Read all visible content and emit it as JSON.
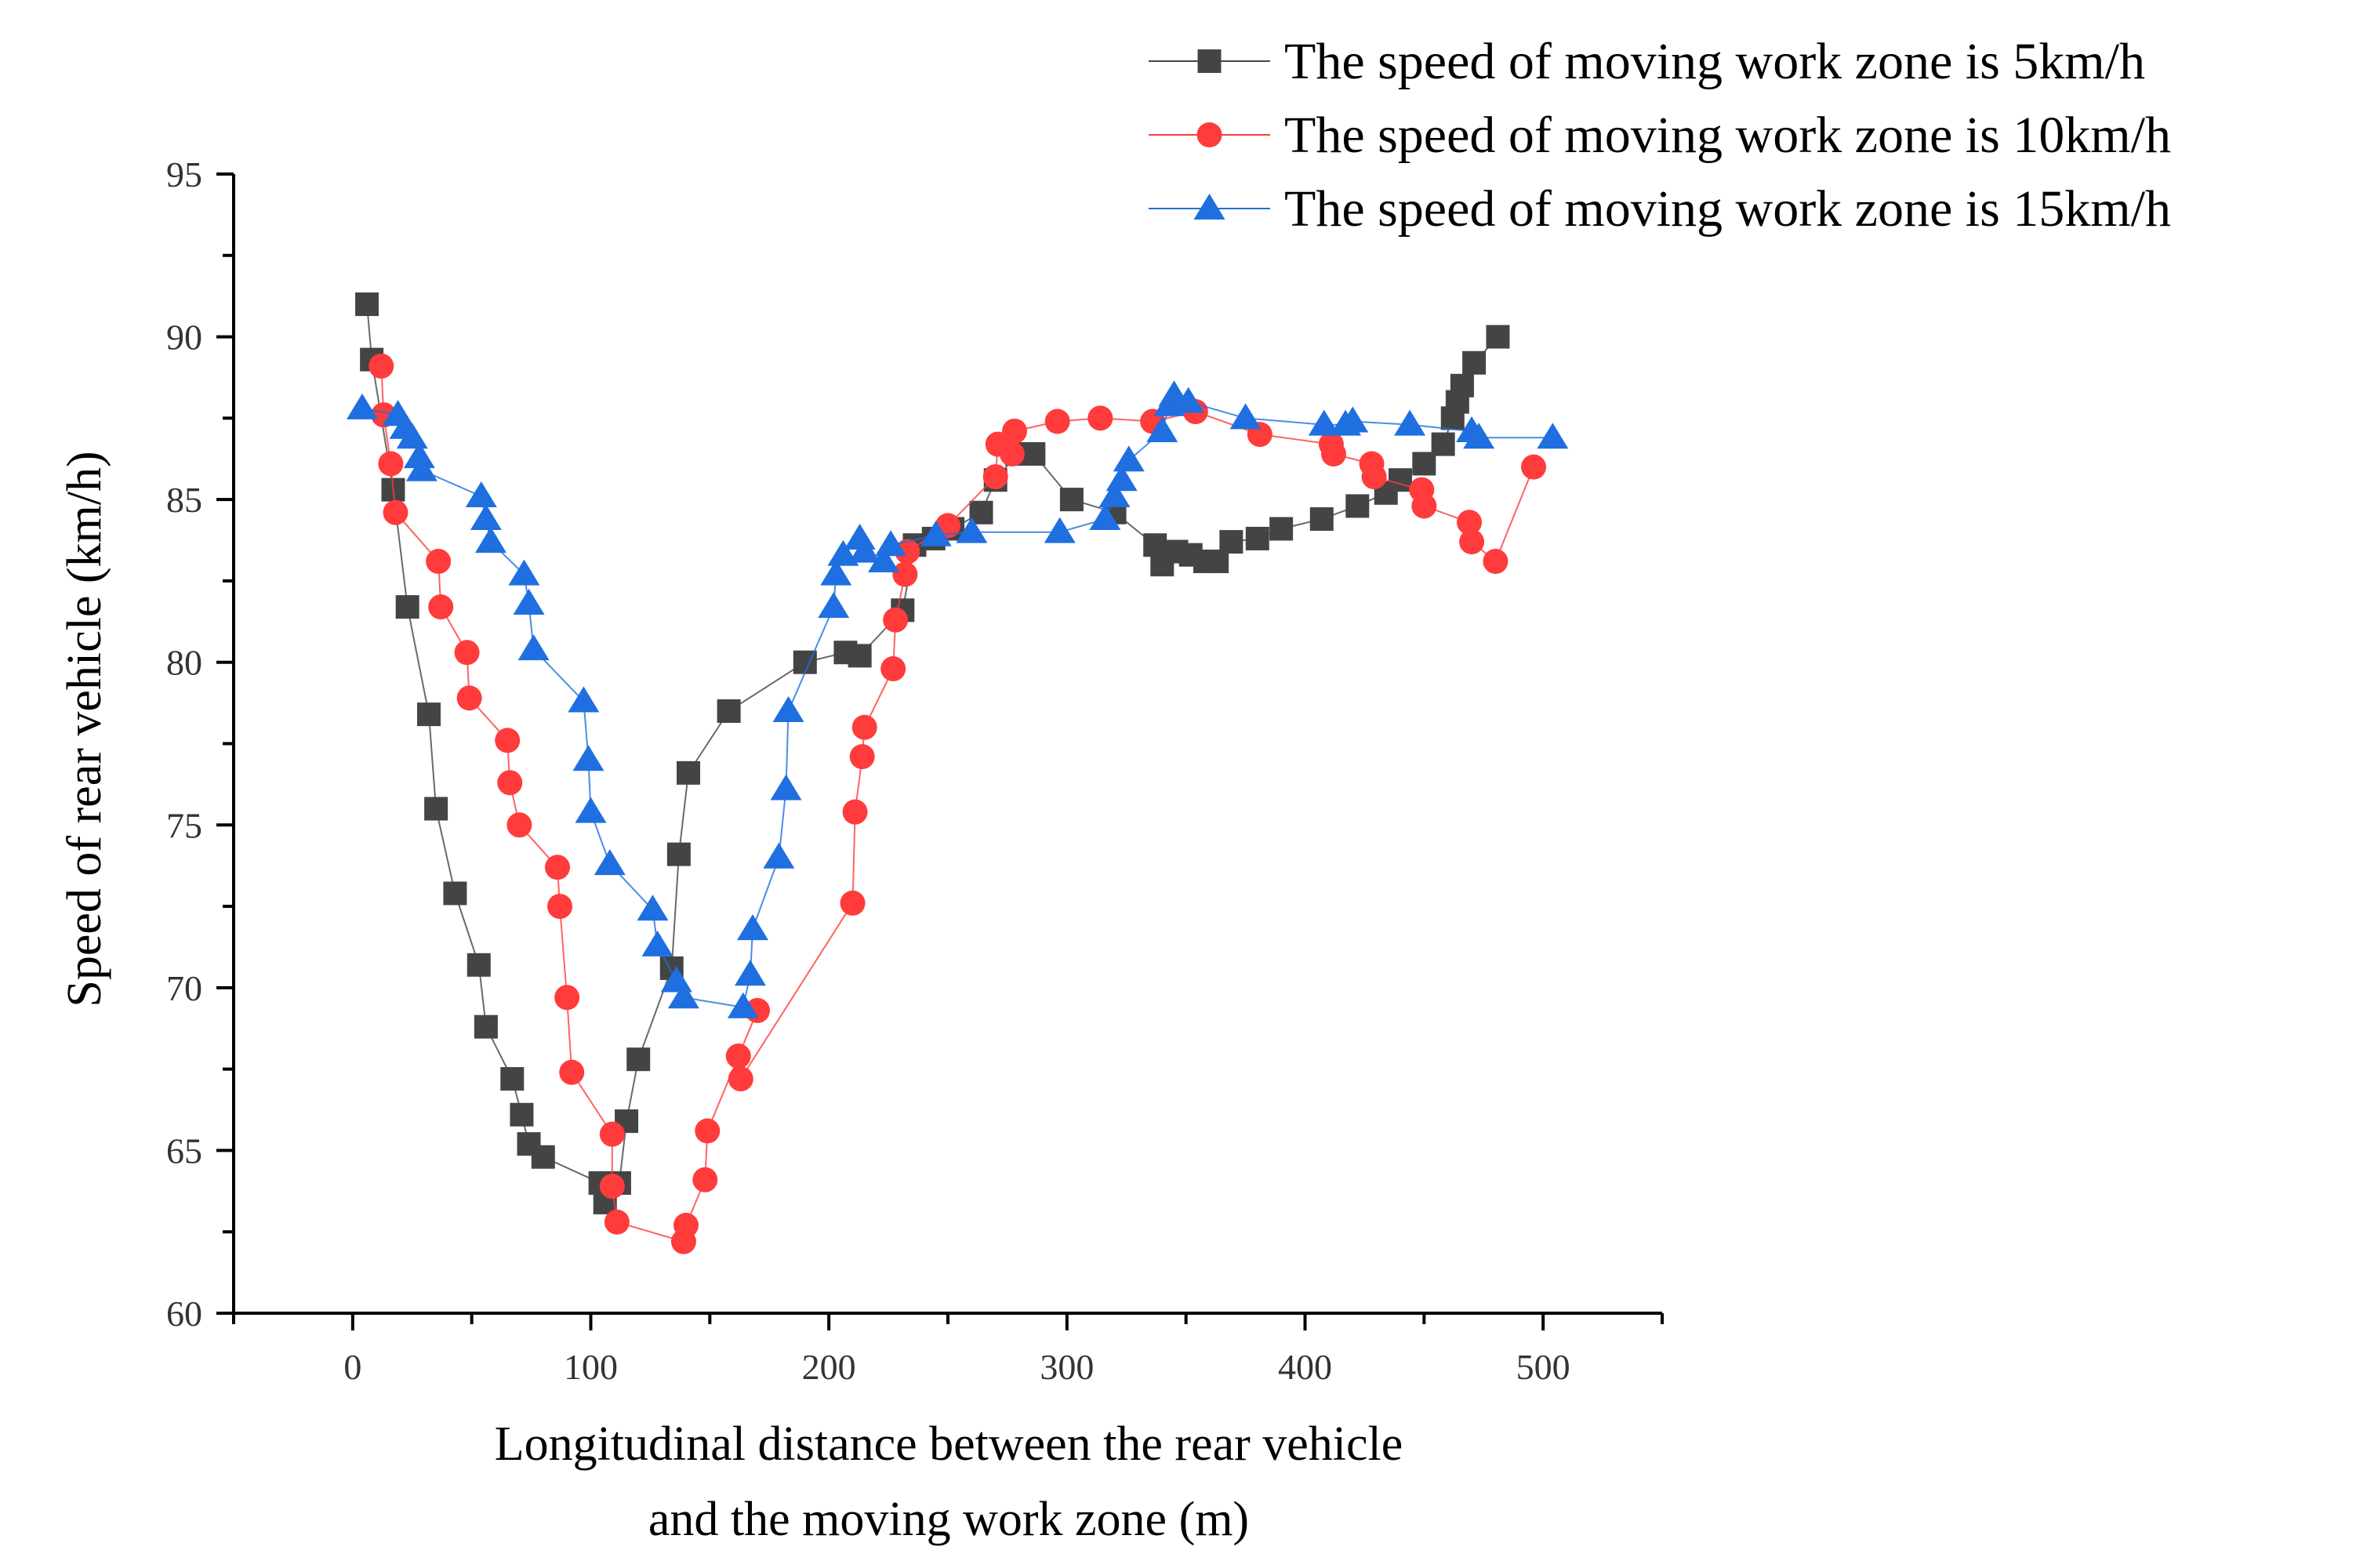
{
  "chart_data": {
    "type": "scatter",
    "title": "",
    "xlabel_lines": [
      "Longitudinal distance between the rear vehicle",
      "and the moving work zone (m)"
    ],
    "ylabel": "Speed of rear vehicle (km/h)",
    "xlim": [
      -50,
      550
    ],
    "ylim": [
      60,
      95
    ],
    "xticks": [
      0,
      100,
      200,
      300,
      400,
      500
    ],
    "yticks": [
      60,
      65,
      70,
      75,
      80,
      85,
      90,
      95
    ],
    "legend_position": "top-right",
    "series": [
      {
        "name": "The speed of moving work zone is 5km/h",
        "color": "#444444",
        "marker": "square",
        "points": [
          [
            6,
            91.0
          ],
          [
            8,
            89.3
          ],
          [
            17,
            85.3
          ],
          [
            23,
            81.7
          ],
          [
            32,
            78.4
          ],
          [
            35,
            75.5
          ],
          [
            43,
            72.9
          ],
          [
            53,
            70.7
          ],
          [
            56,
            68.8
          ],
          [
            67,
            67.2
          ],
          [
            71,
            66.1
          ],
          [
            74,
            65.2
          ],
          [
            80,
            64.8
          ],
          [
            104,
            64.0
          ],
          [
            106,
            63.4
          ],
          [
            112,
            64.0
          ],
          [
            115,
            65.9
          ],
          [
            120,
            67.8
          ],
          [
            134,
            70.6
          ],
          [
            137,
            74.1
          ],
          [
            141,
            76.6
          ],
          [
            158,
            78.5
          ],
          [
            190,
            80.0
          ],
          [
            207,
            80.3
          ],
          [
            213,
            80.2
          ],
          [
            231,
            81.6
          ],
          [
            236,
            83.6
          ],
          [
            244,
            83.8
          ],
          [
            252,
            84.1
          ],
          [
            264,
            84.6
          ],
          [
            270,
            85.6
          ],
          [
            279,
            86.4
          ],
          [
            286,
            86.4
          ],
          [
            302,
            85.0
          ],
          [
            320,
            84.6
          ],
          [
            337,
            83.6
          ],
          [
            340,
            83.0
          ],
          [
            346,
            83.4
          ],
          [
            352,
            83.3
          ],
          [
            358,
            83.1
          ],
          [
            363,
            83.1
          ],
          [
            369,
            83.7
          ],
          [
            380,
            83.8
          ],
          [
            390,
            84.1
          ],
          [
            407,
            84.4
          ],
          [
            422,
            84.8
          ],
          [
            434,
            85.2
          ],
          [
            440,
            85.6
          ],
          [
            450,
            86.1
          ],
          [
            458,
            86.7
          ],
          [
            462,
            87.5
          ],
          [
            464,
            88.0
          ],
          [
            466,
            88.5
          ],
          [
            471,
            89.2
          ],
          [
            481,
            90.0
          ]
        ]
      },
      {
        "name": "The speed of moving work zone is 10km/h",
        "color": "#ff3b3b",
        "marker": "circle",
        "points": [
          [
            12,
            89.1
          ],
          [
            13,
            87.6
          ],
          [
            16,
            86.1
          ],
          [
            18,
            84.6
          ],
          [
            36,
            83.1
          ],
          [
            37,
            81.7
          ],
          [
            48,
            80.3
          ],
          [
            49,
            78.9
          ],
          [
            65,
            77.6
          ],
          [
            66,
            76.3
          ],
          [
            70,
            75.0
          ],
          [
            86,
            73.7
          ],
          [
            87,
            72.5
          ],
          [
            90,
            69.7
          ],
          [
            92,
            67.4
          ],
          [
            109,
            65.5
          ],
          [
            109,
            63.9
          ],
          [
            111,
            62.8
          ],
          [
            139,
            62.2
          ],
          [
            140,
            62.7
          ],
          [
            148,
            64.1
          ],
          [
            149,
            65.6
          ],
          [
            170,
            69.3
          ],
          [
            162,
            67.9
          ],
          [
            163,
            67.2
          ],
          [
            210,
            72.6
          ],
          [
            211,
            75.4
          ],
          [
            214,
            77.1
          ],
          [
            215,
            78.0
          ],
          [
            227,
            79.8
          ],
          [
            228,
            81.3
          ],
          [
            232,
            82.7
          ],
          [
            233,
            83.4
          ],
          [
            250,
            84.2
          ],
          [
            270,
            85.7
          ],
          [
            271,
            86.7
          ],
          [
            277,
            86.4
          ],
          [
            278,
            87.1
          ],
          [
            296,
            87.4
          ],
          [
            314,
            87.5
          ],
          [
            336,
            87.4
          ],
          [
            354,
            87.7
          ],
          [
            381,
            87.0
          ],
          [
            411,
            86.7
          ],
          [
            412,
            86.4
          ],
          [
            428,
            86.1
          ],
          [
            429,
            85.7
          ],
          [
            449,
            85.3
          ],
          [
            450,
            84.8
          ],
          [
            469,
            84.3
          ],
          [
            470,
            83.7
          ],
          [
            480,
            83.1
          ],
          [
            496,
            86.0
          ]
        ]
      },
      {
        "name": "The speed of moving work zone is 15km/h",
        "color": "#1f6fe0",
        "marker": "triangle",
        "points": [
          [
            4,
            87.8
          ],
          [
            19,
            87.6
          ],
          [
            22,
            87.2
          ],
          [
            25,
            86.9
          ],
          [
            28,
            86.3
          ],
          [
            29,
            85.9
          ],
          [
            54,
            85.1
          ],
          [
            56,
            84.4
          ],
          [
            58,
            83.7
          ],
          [
            72,
            82.7
          ],
          [
            74,
            81.8
          ],
          [
            76,
            80.4
          ],
          [
            97,
            78.8
          ],
          [
            99,
            77.0
          ],
          [
            100,
            75.4
          ],
          [
            108,
            73.8
          ],
          [
            126,
            72.4
          ],
          [
            128,
            71.3
          ],
          [
            136,
            70.2
          ],
          [
            139,
            69.7
          ],
          [
            164,
            69.4
          ],
          [
            167,
            70.4
          ],
          [
            168,
            71.8
          ],
          [
            179,
            74.0
          ],
          [
            182,
            76.1
          ],
          [
            183,
            78.5
          ],
          [
            202,
            81.7
          ],
          [
            203,
            82.7
          ],
          [
            206,
            83.3
          ],
          [
            213,
            83.8
          ],
          [
            215,
            83.4
          ],
          [
            223,
            83.1
          ],
          [
            226,
            83.6
          ],
          [
            245,
            83.9
          ],
          [
            260,
            84.0
          ],
          [
            297,
            84.0
          ],
          [
            316,
            84.4
          ],
          [
            320,
            85.1
          ],
          [
            323,
            85.6
          ],
          [
            326,
            86.2
          ],
          [
            340,
            87.1
          ],
          [
            343,
            87.9
          ],
          [
            345,
            88.2
          ],
          [
            351,
            88.0
          ],
          [
            375,
            87.5
          ],
          [
            408,
            87.3
          ],
          [
            417,
            87.3
          ],
          [
            420,
            87.4
          ],
          [
            444,
            87.3
          ],
          [
            470,
            87.1
          ],
          [
            473,
            86.9
          ],
          [
            504,
            86.9
          ]
        ]
      }
    ]
  }
}
